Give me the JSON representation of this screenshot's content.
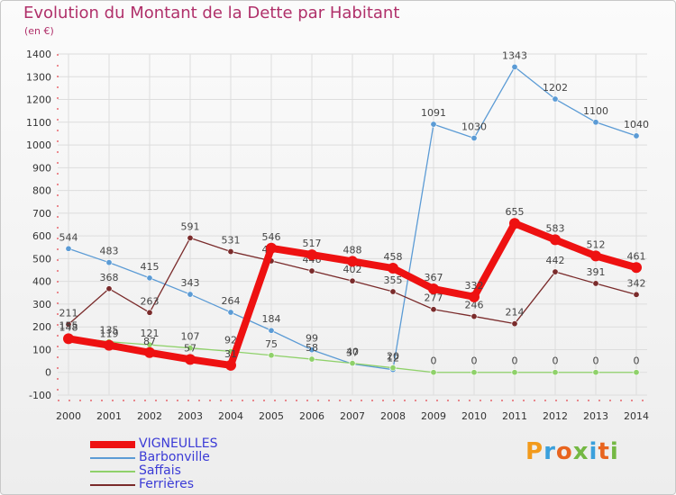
{
  "header": {
    "title": "Evolution du Montant de la Dette par Habitant",
    "subtitle": "(en €)"
  },
  "logo": {
    "text": "Proxiti",
    "colors": [
      "#f29a1b",
      "#3aa0dc",
      "#e8641e",
      "#74b843",
      "#3aa0dc",
      "#e8641e",
      "#74b843"
    ]
  },
  "chart_data": {
    "type": "line",
    "title": "Evolution du Montant de la Dette par Habitant",
    "ylabel": "(en €)",
    "xlabel": "",
    "x": [
      "2000",
      "2001",
      "2002",
      "2003",
      "2004",
      "2005",
      "2006",
      "2007",
      "2008",
      "2009",
      "2010",
      "2011",
      "2012",
      "2013",
      "2014"
    ],
    "ylim": [
      -100,
      1400
    ],
    "yticks": [
      -100,
      0,
      100,
      200,
      300,
      400,
      500,
      600,
      700,
      800,
      900,
      1000,
      1100,
      1200,
      1300,
      1400
    ],
    "grid": true,
    "legend_position": "bottom-left",
    "series": [
      {
        "name": "Barbonville",
        "color": "#5b9bd5",
        "values": [
          544,
          483,
          415,
          343,
          264,
          184,
          99,
          37,
          12,
          1091,
          1030,
          1343,
          1202,
          1100,
          1040
        ],
        "labels": [
          "544",
          "483",
          "415",
          "343",
          "264",
          "184",
          "99",
          "37",
          "12",
          "1091",
          "1030",
          "1343",
          "1202",
          "1100",
          "1040"
        ]
      },
      {
        "name": "Ferrières",
        "color": "#7a2b2b",
        "values": [
          211,
          368,
          263,
          591,
          531,
          490,
          446,
          402,
          355,
          277,
          246,
          214,
          442,
          391,
          342
        ],
        "labels": [
          "211",
          "368",
          "263",
          "591",
          "531",
          "490",
          "446",
          "402",
          "355",
          "277",
          "246",
          "214",
          "442",
          "391",
          "342"
        ]
      },
      {
        "name": "Saffais",
        "color": "#8fd16a",
        "values": [
          155,
          135,
          121,
          107,
          92,
          75,
          58,
          40,
          20,
          0,
          0,
          0,
          0,
          0,
          0
        ],
        "labels": [
          "155",
          "135",
          "121",
          "107",
          "92",
          "75",
          "58",
          "40",
          "20",
          "0",
          "0",
          "0",
          "0",
          "0",
          "0"
        ]
      },
      {
        "name": "VIGNEULLES",
        "color": "#ee1111",
        "values": [
          148,
          119,
          87,
          57,
          31,
          546,
          517,
          488,
          458,
          367,
          332,
          655,
          583,
          512,
          461
        ],
        "labels": [
          "148",
          "119",
          "87",
          "57",
          "31",
          "546",
          "517",
          "488",
          "458",
          "367",
          "332",
          "655",
          "583",
          "512",
          "461"
        ]
      }
    ],
    "legend": [
      {
        "name": "VIGNEULLES",
        "color": "#ee1111"
      },
      {
        "name": "Barbonville",
        "color": "#5b9bd5"
      },
      {
        "name": "Saffais",
        "color": "#8fd16a"
      },
      {
        "name": "Ferrières",
        "color": "#7a2b2b"
      }
    ]
  }
}
